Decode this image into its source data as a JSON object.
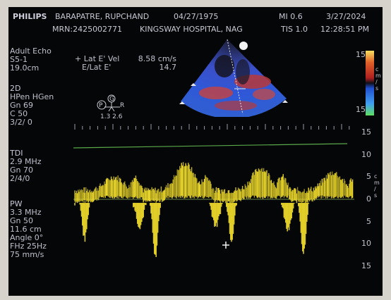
{
  "header": {
    "brand": "PHILIPS",
    "patient_name": "BARAPATRE, RUPCHAND",
    "patient_dob": "04/27/1975",
    "mi": "MI 0.6",
    "exam_date": "3/27/2024",
    "mrn": "MRN:2425002771",
    "hospital": "KINGSWAY HOSPITAL, NAG",
    "tis": "TIS 1.0",
    "time": "12:28:51 PM"
  },
  "settings_left": {
    "exam_type": "Adult Echo",
    "probe": "S5-1",
    "depth": "19.0cm"
  },
  "measurements": [
    {
      "label": "+ Lat E' Vel",
      "value": "8.58 cm/s"
    },
    {
      "label": "E/Lat E'",
      "value": "14.7"
    }
  ],
  "mode_2d": {
    "title": "2D",
    "lines": [
      "HPen HGen",
      "Gn 69",
      "C 50",
      "3/2/ 0"
    ]
  },
  "mode_tdi": {
    "title": "TDI",
    "lines": [
      "2.9 MHz",
      "Gn 70",
      "2/4/0"
    ]
  },
  "mode_pw": {
    "title": "PW",
    "lines": [
      "3.3 MHz",
      "Gn 50",
      "11.6 cm",
      "Angle 0°",
      "FHz 25Hz",
      "75 mm/s"
    ]
  },
  "probe_marker": {
    "p": "P",
    "g": "G",
    "r": "R",
    "values": "1.3  2.6"
  },
  "color_scale": {
    "top": "15",
    "bottom": "15",
    "unit": "c m / s"
  },
  "velocity_axis": {
    "ticks": [
      "15",
      "10",
      "5",
      "0",
      "5",
      "10",
      "15"
    ],
    "values": [
      15,
      10,
      5,
      0,
      -5,
      -10,
      -15
    ],
    "unit": "c m / s"
  },
  "colors": {
    "screen_bg": "#050608",
    "text": "#c9c9d2",
    "baseline": "#5aa84a",
    "doppler": "#f0dc2c",
    "sector_blue": "#2e5bd6",
    "sector_red": "#c23a3a"
  },
  "icons": [
    "probe-orientation-icon",
    "sector-marker-icon",
    "color-scale-bar-icon",
    "cursor-icon"
  ]
}
